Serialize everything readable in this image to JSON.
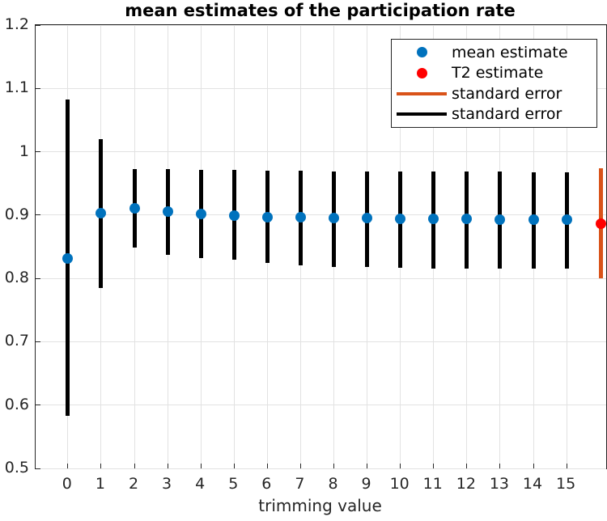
{
  "chart_data": {
    "type": "scatter",
    "title": "mean estimates of the participation rate",
    "xlabel": "trimming value",
    "ylabel": "",
    "xlim": [
      -0.97,
      16.19
    ],
    "ylim": [
      0.5,
      1.2
    ],
    "x_tick_values": [
      0,
      1,
      2,
      3,
      4,
      5,
      6,
      7,
      8,
      9,
      10,
      11,
      12,
      13,
      14,
      15
    ],
    "x_tick_labels": [
      "0",
      "1",
      "2",
      "3",
      "4",
      "5",
      "6",
      "7",
      "8",
      "9",
      "10",
      "11",
      "12",
      "13",
      "14",
      "15"
    ],
    "y_tick_values": [
      0.5,
      0.6,
      0.7,
      0.8,
      0.9,
      1,
      1.1,
      1.2
    ],
    "y_tick_labels": [
      "0.5",
      "0.6",
      "0.7",
      "0.8",
      "0.9",
      "1",
      "1.1",
      "1.2"
    ],
    "grid": true,
    "axis_color": "#262626",
    "grid_color": "#e2e2e2",
    "legend_position": "northeast",
    "series": [
      {
        "name": "standard error (trimmed means)",
        "legend_label": "standard error",
        "type": "errorbar",
        "color": "#000000",
        "x": [
          0,
          1,
          2,
          3,
          4,
          5,
          6,
          7,
          8,
          9,
          10,
          11,
          12,
          13,
          14,
          15
        ],
        "lo": [
          0.583,
          0.785,
          0.849,
          0.837,
          0.832,
          0.829,
          0.824,
          0.821,
          0.818,
          0.818,
          0.817,
          0.816,
          0.815,
          0.815,
          0.815,
          0.816
        ],
        "hi": [
          1.082,
          1.02,
          0.973,
          0.972,
          0.971,
          0.971,
          0.97,
          0.97,
          0.969,
          0.969,
          0.969,
          0.969,
          0.969,
          0.969,
          0.968,
          0.968
        ]
      },
      {
        "name": "standard error (T2)",
        "legend_label": "standard error",
        "type": "errorbar",
        "color": "#D95319",
        "x": [
          16.02
        ],
        "lo": [
          0.8
        ],
        "hi": [
          0.974
        ]
      },
      {
        "name": "mean estimate",
        "type": "scatter",
        "color": "#0072BD",
        "x": [
          0,
          1,
          2,
          3,
          4,
          5,
          6,
          7,
          8,
          9,
          10,
          11,
          12,
          13,
          14,
          15
        ],
        "y": [
          0.832,
          0.903,
          0.911,
          0.906,
          0.902,
          0.899,
          0.897,
          0.896,
          0.895,
          0.895,
          0.894,
          0.894,
          0.894,
          0.893,
          0.893,
          0.893
        ]
      },
      {
        "name": "T2 estimate",
        "type": "scatter",
        "color": "#FF0000",
        "x": [
          16.02
        ],
        "y": [
          0.886
        ]
      }
    ],
    "legend_entries": [
      {
        "label": "mean estimate",
        "marker": "dot",
        "color": "#0072BD"
      },
      {
        "label": "T2 estimate",
        "marker": "dot",
        "color": "#FF0000"
      },
      {
        "label": "standard error",
        "marker": "line",
        "color": "#D95319"
      },
      {
        "label": "standard error",
        "marker": "line",
        "color": "#000000"
      }
    ]
  }
}
